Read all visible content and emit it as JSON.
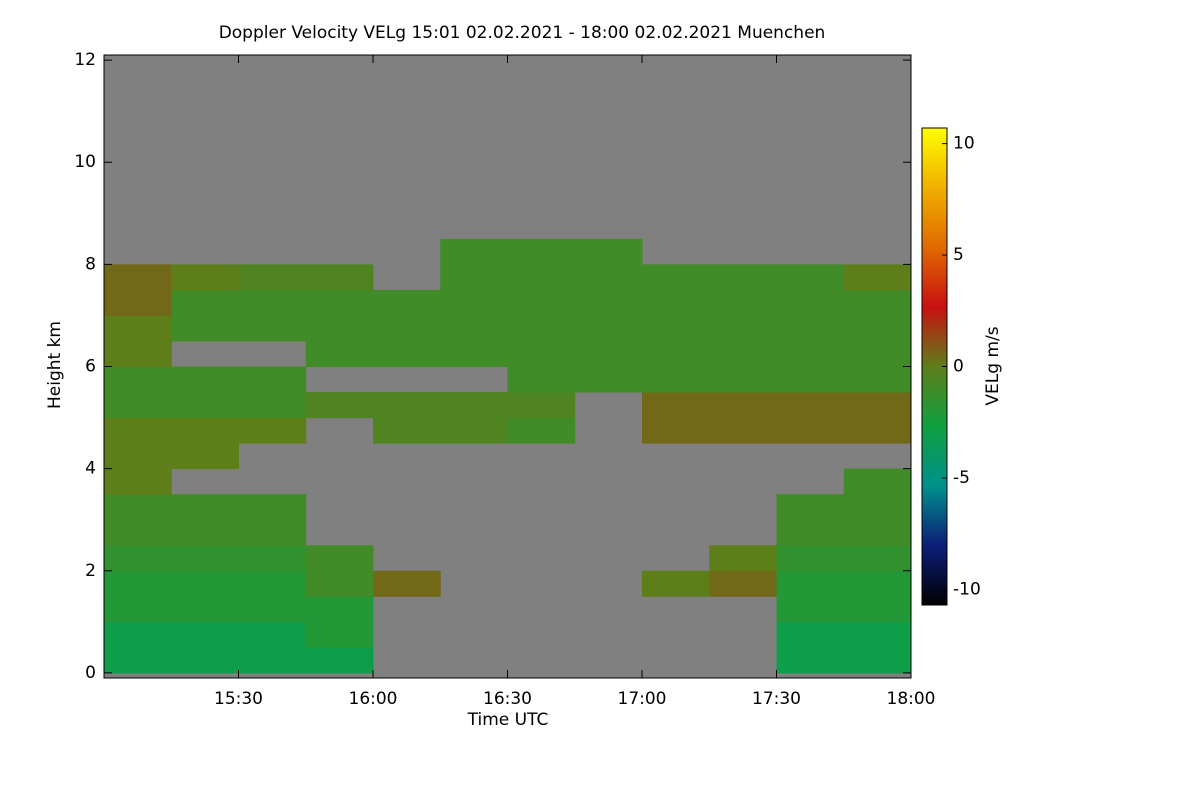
{
  "chart_data": {
    "type": "heatmap",
    "title": "Doppler Velocity VELg   15:01 02.02.2021 - 18:00 02.02.2021 Muenchen",
    "xlabel": "Time UTC",
    "ylabel": "Height km",
    "colorbar_label": "VELg m/s",
    "background": "#808080",
    "colormap": [
      "#000000",
      "#0c1e78",
      "#00908a",
      "#10a040",
      "#5e7e1a",
      "#c81010",
      "#e06a00",
      "#f0b000",
      "#ffff00"
    ],
    "clim": [
      -10.7,
      10.7
    ],
    "cticks": [
      -10,
      -5,
      0,
      5,
      10
    ],
    "xlim": [
      "15:00",
      "18:00"
    ],
    "xticks": [
      "15:30",
      "16:00",
      "16:30",
      "17:00",
      "17:30",
      "18:00"
    ],
    "ylim": [
      -0.1,
      12.1
    ],
    "yticks": [
      0,
      2,
      4,
      6,
      8,
      10,
      12
    ],
    "x_edges": [
      "15:00",
      "15:15",
      "15:30",
      "15:45",
      "16:00",
      "16:15",
      "16:30",
      "16:45",
      "17:00",
      "17:15",
      "17:30",
      "17:45",
      "18:00"
    ],
    "y_edges": [
      0,
      0.5,
      1,
      1.5,
      2,
      2.5,
      3,
      3.5,
      4,
      4.5,
      5,
      5.5,
      6,
      6.5,
      7,
      7.5,
      8,
      8.5,
      9,
      9.5,
      10,
      10.5,
      11,
      11.5,
      12
    ],
    "z": [
      [
        -3,
        -3,
        -3,
        -3,
        null,
        null,
        null,
        null,
        null,
        null,
        -3,
        -3
      ],
      [
        -3,
        -3,
        -3,
        -2,
        null,
        null,
        null,
        null,
        null,
        null,
        -3,
        -3
      ],
      [
        -2,
        -2,
        -2,
        -2,
        null,
        null,
        null,
        null,
        null,
        null,
        -2,
        -2
      ],
      [
        -2,
        -2,
        -2,
        -1,
        0.5,
        null,
        null,
        null,
        0,
        0.5,
        -2,
        -2
      ],
      [
        -1.5,
        -1.5,
        -1.5,
        -1,
        null,
        null,
        null,
        null,
        null,
        0,
        -1.5,
        -1.5
      ],
      [
        -1,
        -1,
        -1,
        null,
        null,
        null,
        null,
        null,
        null,
        null,
        -1,
        -1
      ],
      [
        -1,
        -1,
        -1,
        null,
        null,
        null,
        null,
        null,
        null,
        null,
        -1,
        -1
      ],
      [
        0,
        null,
        null,
        null,
        null,
        null,
        null,
        null,
        null,
        null,
        null,
        -1
      ],
      [
        0,
        0,
        null,
        null,
        null,
        null,
        null,
        null,
        null,
        null,
        null,
        null
      ],
      [
        0,
        0,
        0,
        null,
        -0.5,
        -0.5,
        -1,
        null,
        0.5,
        0.5,
        0.5,
        0.5
      ],
      [
        -1,
        -1,
        -1,
        -0.5,
        -0.5,
        -0.5,
        -0.5,
        null,
        0.5,
        0.5,
        0.5,
        0.5
      ],
      [
        -1,
        -1,
        -1,
        null,
        null,
        null,
        -1,
        -1,
        -1,
        -1,
        -1,
        -1
      ],
      [
        0,
        null,
        null,
        -1,
        -1,
        -1,
        -1,
        -1,
        -1,
        -1,
        -1,
        -1
      ],
      [
        0,
        -1,
        -1,
        -1,
        -1,
        -1,
        -1,
        -1,
        -1,
        -1,
        -1,
        -1
      ],
      [
        0.5,
        -1,
        -1,
        -1,
        -1,
        -1,
        -1,
        -1,
        -1,
        -1,
        -1,
        -1
      ],
      [
        0.5,
        0,
        -0.5,
        -0.5,
        null,
        -1,
        -1,
        -1,
        -1,
        -1,
        -1,
        0
      ],
      [
        null,
        null,
        null,
        null,
        null,
        -1,
        -1,
        -1,
        null,
        null,
        null,
        null
      ],
      [
        null,
        null,
        null,
        null,
        null,
        null,
        null,
        null,
        null,
        null,
        null,
        null
      ],
      [
        null,
        null,
        null,
        null,
        null,
        null,
        null,
        null,
        null,
        null,
        null,
        null
      ],
      [
        null,
        null,
        null,
        null,
        null,
        null,
        null,
        null,
        null,
        null,
        null,
        null
      ],
      [
        null,
        null,
        null,
        null,
        null,
        null,
        null,
        null,
        null,
        null,
        null,
        null
      ],
      [
        null,
        null,
        null,
        null,
        null,
        null,
        null,
        null,
        null,
        null,
        null,
        null
      ],
      [
        null,
        null,
        null,
        null,
        null,
        null,
        null,
        null,
        null,
        null,
        null,
        null
      ],
      [
        null,
        null,
        null,
        null,
        null,
        null,
        null,
        null,
        null,
        null,
        null,
        null
      ]
    ]
  }
}
